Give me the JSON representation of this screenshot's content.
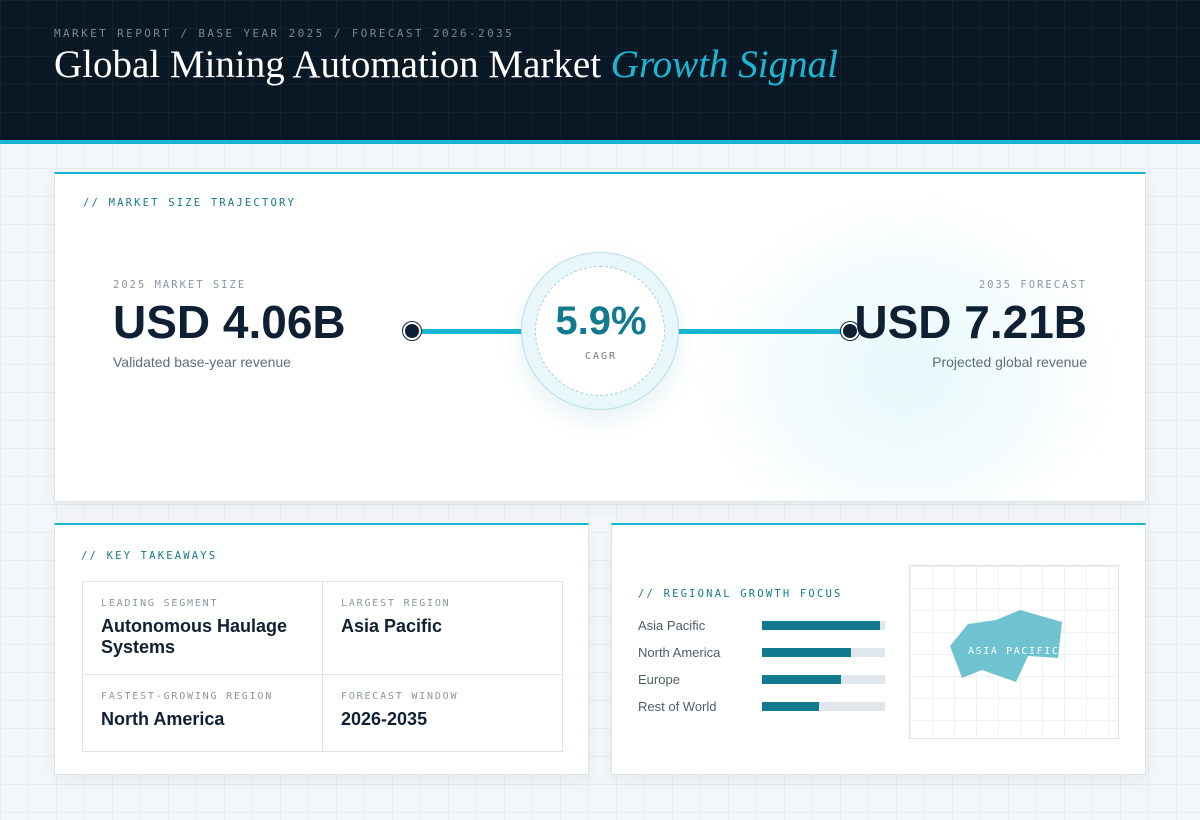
{
  "header": {
    "eyebrow": "MARKET REPORT / BASE YEAR 2025 / FORECAST 2026-2035",
    "title_main": "Global Mining Automation Market",
    "title_accent": "Growth Signal"
  },
  "trajectory": {
    "section_label": "// MARKET SIZE TRAJECTORY",
    "base": {
      "label": "2025 MARKET SIZE",
      "value": "USD 4.06B",
      "description": "Validated base-year revenue"
    },
    "cagr": {
      "value": "5.9%",
      "label": "CAGR"
    },
    "forecast": {
      "label": "2035 FORECAST",
      "value": "USD 7.21B",
      "description": "Projected global revenue"
    }
  },
  "takeaways": {
    "section_label": "// KEY TAKEAWAYS",
    "items": [
      {
        "label": "LEADING SEGMENT",
        "value": "Autonomous Haulage Systems"
      },
      {
        "label": "LARGEST REGION",
        "value": "Asia Pacific"
      },
      {
        "label": "FASTEST-GROWING REGION",
        "value": "North America"
      },
      {
        "label": "FORECAST WINDOW",
        "value": "2026-2035"
      }
    ]
  },
  "regional": {
    "section_label": "// REGIONAL GROWTH FOCUS",
    "bars": [
      {
        "name": "Asia Pacific",
        "fraction": 0.96
      },
      {
        "name": "North America",
        "fraction": 0.72
      },
      {
        "name": "Europe",
        "fraction": 0.64
      },
      {
        "name": "Rest of World",
        "fraction": 0.46
      }
    ],
    "map_label": "ASIA PACIFIC"
  },
  "colors": {
    "accent": "#14b6d2",
    "bar_fill": "#127a8e",
    "header_bg": "#0a1826"
  }
}
